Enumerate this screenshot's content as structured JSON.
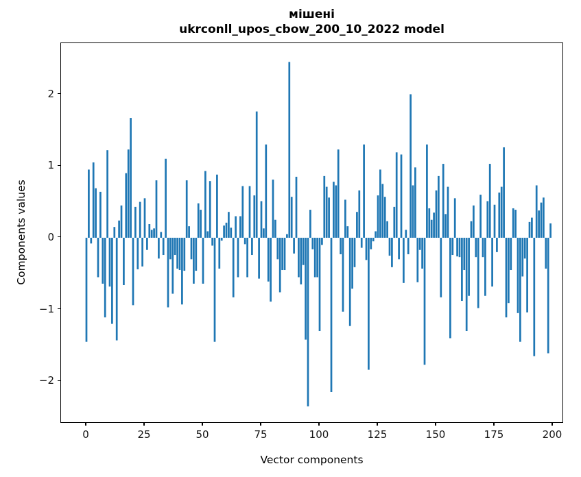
{
  "figure": {
    "background_color": "#ffffff",
    "title_line1": "мішені",
    "title_line2": "ukrconll_upos_cbow_200_10_2022 model"
  },
  "chart_data": {
    "type": "bar",
    "title": "мішені\nukrconll_upos_cbow_200_10_2022 model",
    "xlabel": "Vector components",
    "ylabel": "Components values",
    "bar_color": "#1f77b4",
    "grid": false,
    "legend": "none",
    "xticks": [
      0,
      25,
      50,
      75,
      100,
      125,
      150,
      175,
      200
    ],
    "yticks": [
      -2,
      -1,
      0,
      1,
      2
    ],
    "xlim": [
      -10.9,
      204.7
    ],
    "ylim": [
      -2.58,
      2.71
    ],
    "x_start": 0,
    "n_components": 200,
    "values": [
      -1.45,
      0.95,
      -0.08,
      1.05,
      0.69,
      -0.55,
      0.64,
      -0.64,
      -1.11,
      1.22,
      -0.68,
      -1.2,
      0.15,
      -1.43,
      0.24,
      0.45,
      -0.66,
      0.9,
      1.23,
      1.67,
      -0.94,
      0.43,
      -0.44,
      0.5,
      -0.4,
      0.55,
      -0.17,
      0.19,
      0.11,
      0.13,
      0.8,
      -0.29,
      0.08,
      -0.24,
      1.1,
      -0.97,
      -0.3,
      -0.78,
      -0.24,
      -0.43,
      -0.45,
      -0.93,
      -0.46,
      0.8,
      0.16,
      -0.3,
      -0.64,
      -0.46,
      0.48,
      0.39,
      -0.64,
      0.93,
      0.09,
      0.79,
      -0.11,
      -1.45,
      0.88,
      -0.43,
      -0.04,
      0.17,
      0.21,
      0.36,
      0.14,
      -0.83,
      0.3,
      -0.55,
      0.3,
      0.72,
      -0.09,
      -0.55,
      0.72,
      -0.24,
      0.59,
      1.76,
      -0.57,
      0.51,
      0.13,
      1.3,
      -0.61,
      -0.89,
      0.81,
      0.25,
      -0.3,
      -0.76,
      -0.45,
      -0.45,
      0.05,
      2.45,
      0.57,
      -0.22,
      0.85,
      -0.55,
      -0.65,
      -0.38,
      -1.42,
      -2.35,
      0.39,
      -0.16,
      -0.55,
      -0.55,
      -1.3,
      -0.1,
      0.86,
      0.71,
      0.56,
      -2.15,
      0.78,
      0.73,
      1.23,
      -0.23,
      -1.03,
      0.53,
      0.16,
      -1.23,
      -0.71,
      -0.41,
      0.36,
      0.66,
      -0.14,
      1.3,
      -0.31,
      -1.84,
      -0.16,
      -0.05,
      0.09,
      0.59,
      0.95,
      0.75,
      0.57,
      0.23,
      -0.25,
      -0.41,
      0.43,
      1.19,
      -0.3,
      1.16,
      -0.63,
      0.11,
      -0.23,
      2.0,
      0.73,
      0.98,
      -0.62,
      -0.17,
      -0.43,
      -1.77,
      1.3,
      0.41,
      0.25,
      0.35,
      0.66,
      0.86,
      -0.83,
      1.03,
      0.33,
      0.71,
      -1.4,
      -0.24,
      0.55,
      -0.26,
      -0.27,
      -0.88,
      -0.45,
      -1.3,
      -0.81,
      0.23,
      0.45,
      -0.27,
      -0.98,
      0.6,
      -0.27,
      -0.81,
      0.51,
      1.03,
      -0.68,
      0.46,
      -0.2,
      0.63,
      0.71,
      1.26,
      -1.11,
      -0.91,
      -0.45,
      0.41,
      0.39,
      -1.05,
      -1.45,
      -0.54,
      -0.29,
      -1.04,
      0.22,
      0.28,
      -1.65,
      0.73,
      0.38,
      0.49,
      0.56,
      -0.43,
      -1.61,
      0.2
    ]
  }
}
